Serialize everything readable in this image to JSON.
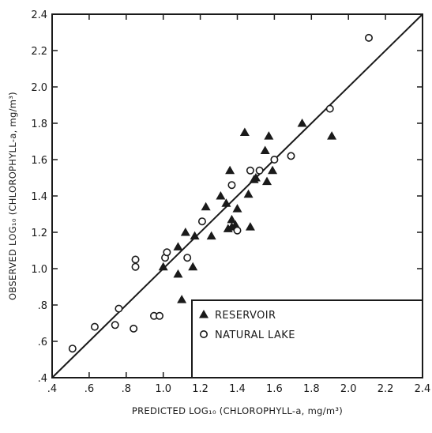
{
  "chart_data": {
    "type": "scatter",
    "xlabel": "PREDICTED LOG₁₀ (CHLOROPHYLL-a, mg/m³)",
    "ylabel": "OBSERVED LOG₁₀ (CHLOROPHYLL-a, mg/m³)",
    "xlim": [
      0.4,
      2.4
    ],
    "ylim": [
      0.4,
      2.4
    ],
    "x_ticks": [
      ".4",
      ".6",
      ".8",
      "1.0",
      "1.2",
      "1.4",
      "1.6",
      "1.8",
      "2.0",
      "2.2",
      "2.4"
    ],
    "y_ticks": [
      ".4",
      ".6",
      ".8",
      "1.0",
      "1.2",
      "1.4",
      "1.6",
      "1.8",
      "2.0",
      "2.2",
      "2.4"
    ],
    "grid": false,
    "legend_position": "bottom-right",
    "reference_line": {
      "x": [
        0.4,
        2.4
      ],
      "y": [
        0.4,
        2.4
      ]
    },
    "series": [
      {
        "name": "RESERVOIR",
        "marker": "filled-triangle",
        "x": [
          1.08,
          1.08,
          1.12,
          1.17,
          1.23,
          1.26,
          1.31,
          1.34,
          1.35,
          1.36,
          1.37,
          1.37,
          1.39,
          1.4,
          1.44,
          1.46,
          1.47,
          1.49,
          1.5,
          1.55,
          1.56,
          1.57,
          1.59,
          1.75,
          1.91,
          1.16,
          1.1,
          1.0
        ],
        "y": [
          1.12,
          0.97,
          1.2,
          1.18,
          1.34,
          1.18,
          1.4,
          1.36,
          1.22,
          1.54,
          1.27,
          1.23,
          1.24,
          1.33,
          1.75,
          1.41,
          1.23,
          1.49,
          1.5,
          1.65,
          1.48,
          1.73,
          1.54,
          1.8,
          1.73,
          1.01,
          0.83,
          1.01
        ]
      },
      {
        "name": "NATURAL LAKE",
        "marker": "open-circle",
        "x": [
          0.51,
          0.63,
          0.74,
          0.76,
          0.84,
          0.85,
          0.85,
          0.95,
          0.98,
          1.01,
          1.02,
          1.13,
          1.21,
          1.37,
          1.4,
          1.47,
          1.52,
          1.6,
          1.69,
          1.9,
          2.11
        ],
        "y": [
          0.56,
          0.68,
          0.69,
          0.78,
          0.67,
          1.01,
          1.05,
          0.74,
          0.74,
          1.06,
          1.09,
          1.06,
          1.26,
          1.46,
          1.21,
          1.54,
          1.54,
          1.6,
          1.62,
          1.88,
          2.27
        ]
      }
    ]
  }
}
